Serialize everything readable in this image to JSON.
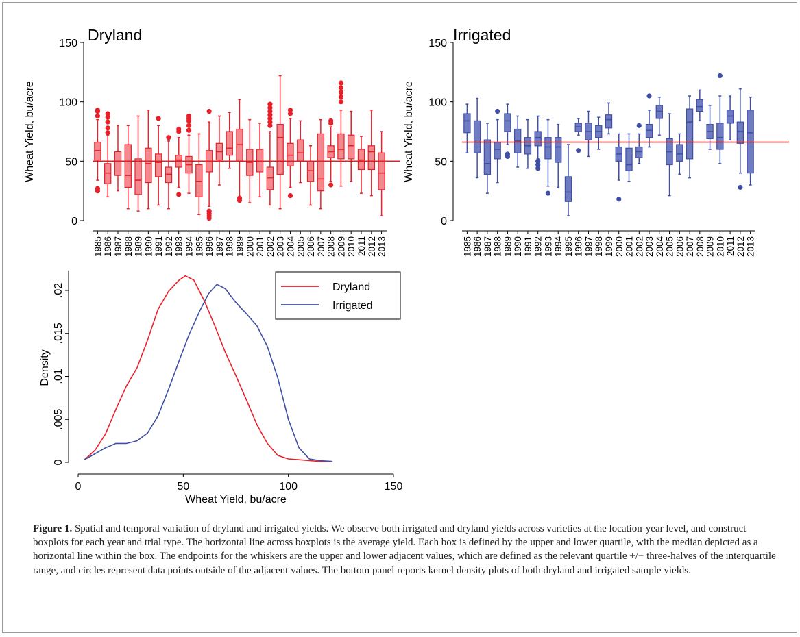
{
  "colors": {
    "dryland": "#e8202a",
    "dryland_fill": "#f3898e",
    "irrigated": "#3f4fa6",
    "irrigated_fill": "#6f7cc2",
    "mean_line": "#d02828"
  },
  "chart_data": [
    {
      "type": "boxplot",
      "title": "Dryland",
      "ylabel": "Wheat Yield, bu/acre",
      "ylim": [
        0,
        150
      ],
      "yticks": [
        "0",
        "50",
        "100",
        "150"
      ],
      "mean_line": 50,
      "categories": [
        "1985",
        "1986",
        "1987",
        "1988",
        "1989",
        "1990",
        "1991",
        "1992",
        "1993",
        "1994",
        "1995",
        "1996",
        "1997",
        "1998",
        "1999",
        "2000",
        "2001",
        "2002",
        "2003",
        "2004",
        "2005",
        "2006",
        "2007",
        "2008",
        "2009",
        "2010",
        "2011",
        "2012",
        "2013"
      ],
      "boxes": [
        {
          "low": 34,
          "q1": 51,
          "median": 59,
          "q3": 66,
          "high": 85,
          "outliers": [
            25,
            27,
            88,
            92,
            93
          ]
        },
        {
          "low": 20,
          "q1": 31,
          "median": 40,
          "q3": 48,
          "high": 72,
          "outliers": [
            74,
            78,
            83,
            87,
            90
          ]
        },
        {
          "low": 25,
          "q1": 38,
          "median": 50,
          "q3": 58,
          "high": 80,
          "outliers": []
        },
        {
          "low": 10,
          "q1": 28,
          "median": 38,
          "q3": 64,
          "high": 80,
          "outliers": []
        },
        {
          "low": 8,
          "q1": 22,
          "median": 34,
          "q3": 52,
          "high": 88,
          "outliers": []
        },
        {
          "low": 10,
          "q1": 32,
          "median": 48,
          "q3": 61,
          "high": 93,
          "outliers": []
        },
        {
          "low": 13,
          "q1": 37,
          "median": 49,
          "q3": 56,
          "high": 80,
          "outliers": [
            86
          ]
        },
        {
          "low": 10,
          "q1": 32,
          "median": 39,
          "q3": 45,
          "high": 67,
          "outliers": [
            70
          ]
        },
        {
          "low": 28,
          "q1": 45,
          "median": 51,
          "q3": 55,
          "high": 70,
          "outliers": [
            22,
            75,
            77
          ]
        },
        {
          "low": 23,
          "q1": 40,
          "median": 47,
          "q3": 54,
          "high": 72,
          "outliers": [
            76,
            80,
            84,
            86,
            88
          ]
        },
        {
          "low": 5,
          "q1": 20,
          "median": 33,
          "q3": 47,
          "high": 73,
          "outliers": []
        },
        {
          "low": 12,
          "q1": 41,
          "median": 50,
          "q3": 59,
          "high": 83,
          "outliers": [
            2,
            4,
            6,
            8,
            92
          ]
        },
        {
          "low": 30,
          "q1": 51,
          "median": 58,
          "q3": 65,
          "high": 88,
          "outliers": []
        },
        {
          "low": 44,
          "q1": 55,
          "median": 61,
          "q3": 75,
          "high": 91,
          "outliers": []
        },
        {
          "low": 20,
          "q1": 50,
          "median": 64,
          "q3": 77,
          "high": 102,
          "outliers": [
            17,
            19
          ]
        },
        {
          "low": 15,
          "q1": 38,
          "median": 49,
          "q3": 60,
          "high": 85,
          "outliers": []
        },
        {
          "low": 20,
          "q1": 41,
          "median": 50,
          "q3": 60,
          "high": 82,
          "outliers": []
        },
        {
          "low": 13,
          "q1": 26,
          "median": 36,
          "q3": 45,
          "high": 75,
          "outliers": [
            80,
            83,
            86,
            89,
            92,
            95,
            98
          ]
        },
        {
          "low": 10,
          "q1": 39,
          "median": 70,
          "q3": 81,
          "high": 122,
          "outliers": []
        },
        {
          "low": 28,
          "q1": 46,
          "median": 55,
          "q3": 65,
          "high": 86,
          "outliers": [
            21,
            90,
            93
          ]
        },
        {
          "low": 32,
          "q1": 50,
          "median": 57,
          "q3": 68,
          "high": 84,
          "outliers": []
        },
        {
          "low": 13,
          "q1": 33,
          "median": 42,
          "q3": 50,
          "high": 63,
          "outliers": []
        },
        {
          "low": 10,
          "q1": 25,
          "median": 35,
          "q3": 73,
          "high": 85,
          "outliers": []
        },
        {
          "low": 33,
          "q1": 53,
          "median": 58,
          "q3": 63,
          "high": 79,
          "outliers": [
            30,
            82,
            84
          ]
        },
        {
          "low": 29,
          "q1": 52,
          "median": 60,
          "q3": 73,
          "high": 93,
          "outliers": [
            100,
            104,
            108,
            112,
            116
          ]
        },
        {
          "low": 33,
          "q1": 52,
          "median": 63,
          "q3": 72,
          "high": 92,
          "outliers": []
        },
        {
          "low": 23,
          "q1": 43,
          "median": 51,
          "q3": 60,
          "high": 71,
          "outliers": []
        },
        {
          "low": 21,
          "q1": 43,
          "median": 58,
          "q3": 63,
          "high": 93,
          "outliers": []
        },
        {
          "low": 4,
          "q1": 26,
          "median": 40,
          "q3": 57,
          "high": 75,
          "outliers": []
        }
      ]
    },
    {
      "type": "boxplot",
      "title": "Irrigated",
      "ylabel": "Wheat Yield, bu/acre",
      "ylim": [
        0,
        150
      ],
      "yticks": [
        "0",
        "50",
        "100",
        "150"
      ],
      "mean_line": 66,
      "categories": [
        "1985",
        "1986",
        "1987",
        "1988",
        "1989",
        "1990",
        "1991",
        "1992",
        "1993",
        "1994",
        "1995",
        "1996",
        "1997",
        "1998",
        "1999",
        "2000",
        "2001",
        "2002",
        "2003",
        "2004",
        "2005",
        "2006",
        "2007",
        "2008",
        "2009",
        "2010",
        "2011",
        "2012",
        "2013"
      ],
      "boxes": [
        {
          "low": 57,
          "q1": 74,
          "median": 84,
          "q3": 90,
          "high": 98,
          "outliers": []
        },
        {
          "low": 36,
          "q1": 57,
          "median": 66,
          "q3": 84,
          "high": 103,
          "outliers": []
        },
        {
          "low": 23,
          "q1": 39,
          "median": 48,
          "q3": 68,
          "high": 82,
          "outliers": []
        },
        {
          "low": 32,
          "q1": 52,
          "median": 60,
          "q3": 66,
          "high": 85,
          "outliers": [
            92
          ]
        },
        {
          "low": 64,
          "q1": 75,
          "median": 84,
          "q3": 90,
          "high": 98,
          "outliers": [
            54,
            56
          ]
        },
        {
          "low": 45,
          "q1": 57,
          "median": 67,
          "q3": 77,
          "high": 88,
          "outliers": []
        },
        {
          "low": 44,
          "q1": 56,
          "median": 63,
          "q3": 70,
          "high": 85,
          "outliers": []
        },
        {
          "low": 52,
          "q1": 63,
          "median": 70,
          "q3": 75,
          "high": 88,
          "outliers": [
            44,
            47,
            50
          ]
        },
        {
          "low": 29,
          "q1": 52,
          "median": 62,
          "q3": 70,
          "high": 85,
          "outliers": [
            23
          ]
        },
        {
          "low": 28,
          "q1": 49,
          "median": 62,
          "q3": 70,
          "high": 81,
          "outliers": []
        },
        {
          "low": 4,
          "q1": 16,
          "median": 24,
          "q3": 37,
          "high": 64,
          "outliers": []
        },
        {
          "low": 72,
          "q1": 75,
          "median": 79,
          "q3": 82,
          "high": 86,
          "outliers": [
            59
          ]
        },
        {
          "low": 54,
          "q1": 68,
          "median": 75,
          "q3": 82,
          "high": 92,
          "outliers": []
        },
        {
          "low": 60,
          "q1": 70,
          "median": 75,
          "q3": 80,
          "high": 87,
          "outliers": []
        },
        {
          "low": 73,
          "q1": 78,
          "median": 85,
          "q3": 89,
          "high": 99,
          "outliers": []
        },
        {
          "low": 34,
          "q1": 50,
          "median": 56,
          "q3": 62,
          "high": 73,
          "outliers": [
            18
          ]
        },
        {
          "low": 33,
          "q1": 42,
          "median": 47,
          "q3": 61,
          "high": 73,
          "outliers": []
        },
        {
          "low": 48,
          "q1": 53,
          "median": 58,
          "q3": 62,
          "high": 73,
          "outliers": [
            80
          ]
        },
        {
          "low": 62,
          "q1": 70,
          "median": 76,
          "q3": 81,
          "high": 93,
          "outliers": [
            105
          ]
        },
        {
          "low": 72,
          "q1": 86,
          "median": 92,
          "q3": 97,
          "high": 104,
          "outliers": []
        },
        {
          "low": 21,
          "q1": 47,
          "median": 58,
          "q3": 69,
          "high": 90,
          "outliers": []
        },
        {
          "low": 39,
          "q1": 50,
          "median": 56,
          "q3": 64,
          "high": 73,
          "outliers": []
        },
        {
          "low": 36,
          "q1": 52,
          "median": 83,
          "q3": 94,
          "high": 105,
          "outliers": []
        },
        {
          "low": 84,
          "q1": 92,
          "median": 96,
          "q3": 102,
          "high": 110,
          "outliers": []
        },
        {
          "low": 60,
          "q1": 69,
          "median": 75,
          "q3": 81,
          "high": 97,
          "outliers": []
        },
        {
          "low": 48,
          "q1": 60,
          "median": 70,
          "q3": 82,
          "high": 105,
          "outliers": [
            122
          ]
        },
        {
          "low": 68,
          "q1": 82,
          "median": 88,
          "q3": 93,
          "high": 105,
          "outliers": []
        },
        {
          "low": 40,
          "q1": 65,
          "median": 75,
          "q3": 83,
          "high": 111,
          "outliers": [
            28
          ]
        },
        {
          "low": 30,
          "q1": 40,
          "median": 74,
          "q3": 93,
          "high": 104,
          "outliers": []
        }
      ]
    },
    {
      "type": "line",
      "xlabel": "Wheat Yield, bu/acre",
      "ylabel": "Density",
      "xlim": [
        0,
        150
      ],
      "ylim": [
        0,
        0.022
      ],
      "xticks": [
        "0",
        "50",
        "100",
        "150"
      ],
      "yticks": [
        "0",
        ".005",
        ".01",
        ".015",
        ".02"
      ],
      "legend_position": "top-right",
      "series": [
        {
          "name": "Dryland",
          "x": [
            3,
            8,
            13,
            18,
            23,
            28,
            33,
            38,
            43,
            48,
            51,
            55,
            60,
            65,
            70,
            75,
            80,
            85,
            90,
            95,
            100,
            105,
            110,
            115,
            121
          ],
          "y": [
            0.0003,
            0.0014,
            0.0033,
            0.0062,
            0.0089,
            0.011,
            0.0142,
            0.0178,
            0.0199,
            0.0212,
            0.0217,
            0.0212,
            0.0188,
            0.0159,
            0.0128,
            0.0101,
            0.0073,
            0.0044,
            0.0022,
            0.0008,
            0.0004,
            0.0003,
            0.0002,
            0.0001,
            0.0001
          ]
        },
        {
          "name": "Irrigated",
          "x": [
            3,
            8,
            13,
            18,
            23,
            28,
            33,
            38,
            43,
            48,
            53,
            58,
            62,
            66,
            70,
            75,
            80,
            85,
            90,
            95,
            100,
            105,
            110,
            115,
            121
          ],
          "y": [
            0.0003,
            0.001,
            0.0017,
            0.0022,
            0.0022,
            0.0025,
            0.0034,
            0.0054,
            0.0085,
            0.0118,
            0.015,
            0.0177,
            0.0196,
            0.0207,
            0.0202,
            0.0186,
            0.0173,
            0.0159,
            0.0135,
            0.0098,
            0.005,
            0.0017,
            0.0004,
            0.0002,
            0.0001
          ]
        }
      ]
    }
  ],
  "caption": {
    "label": "Figure 1.",
    "text": " Spatial and temporal variation of dryland and irrigated yields. We observe both irrigated and dryland yields across varieties at the location-year level, and construct boxplots for each year and trial type. The horizontal line across boxplots is the average yield. Each box is defined by the upper and lower quartile, with the median depicted as a horizontal line within the box. The endpoints for the whiskers are the upper and lower adjacent values, which are defined as the relevant quartile +/− three-halves of the interquartile range, and circles represent data points outside of the adjacent values. The bottom panel reports kernel density plots of both dryland and irrigated sample yields."
  }
}
